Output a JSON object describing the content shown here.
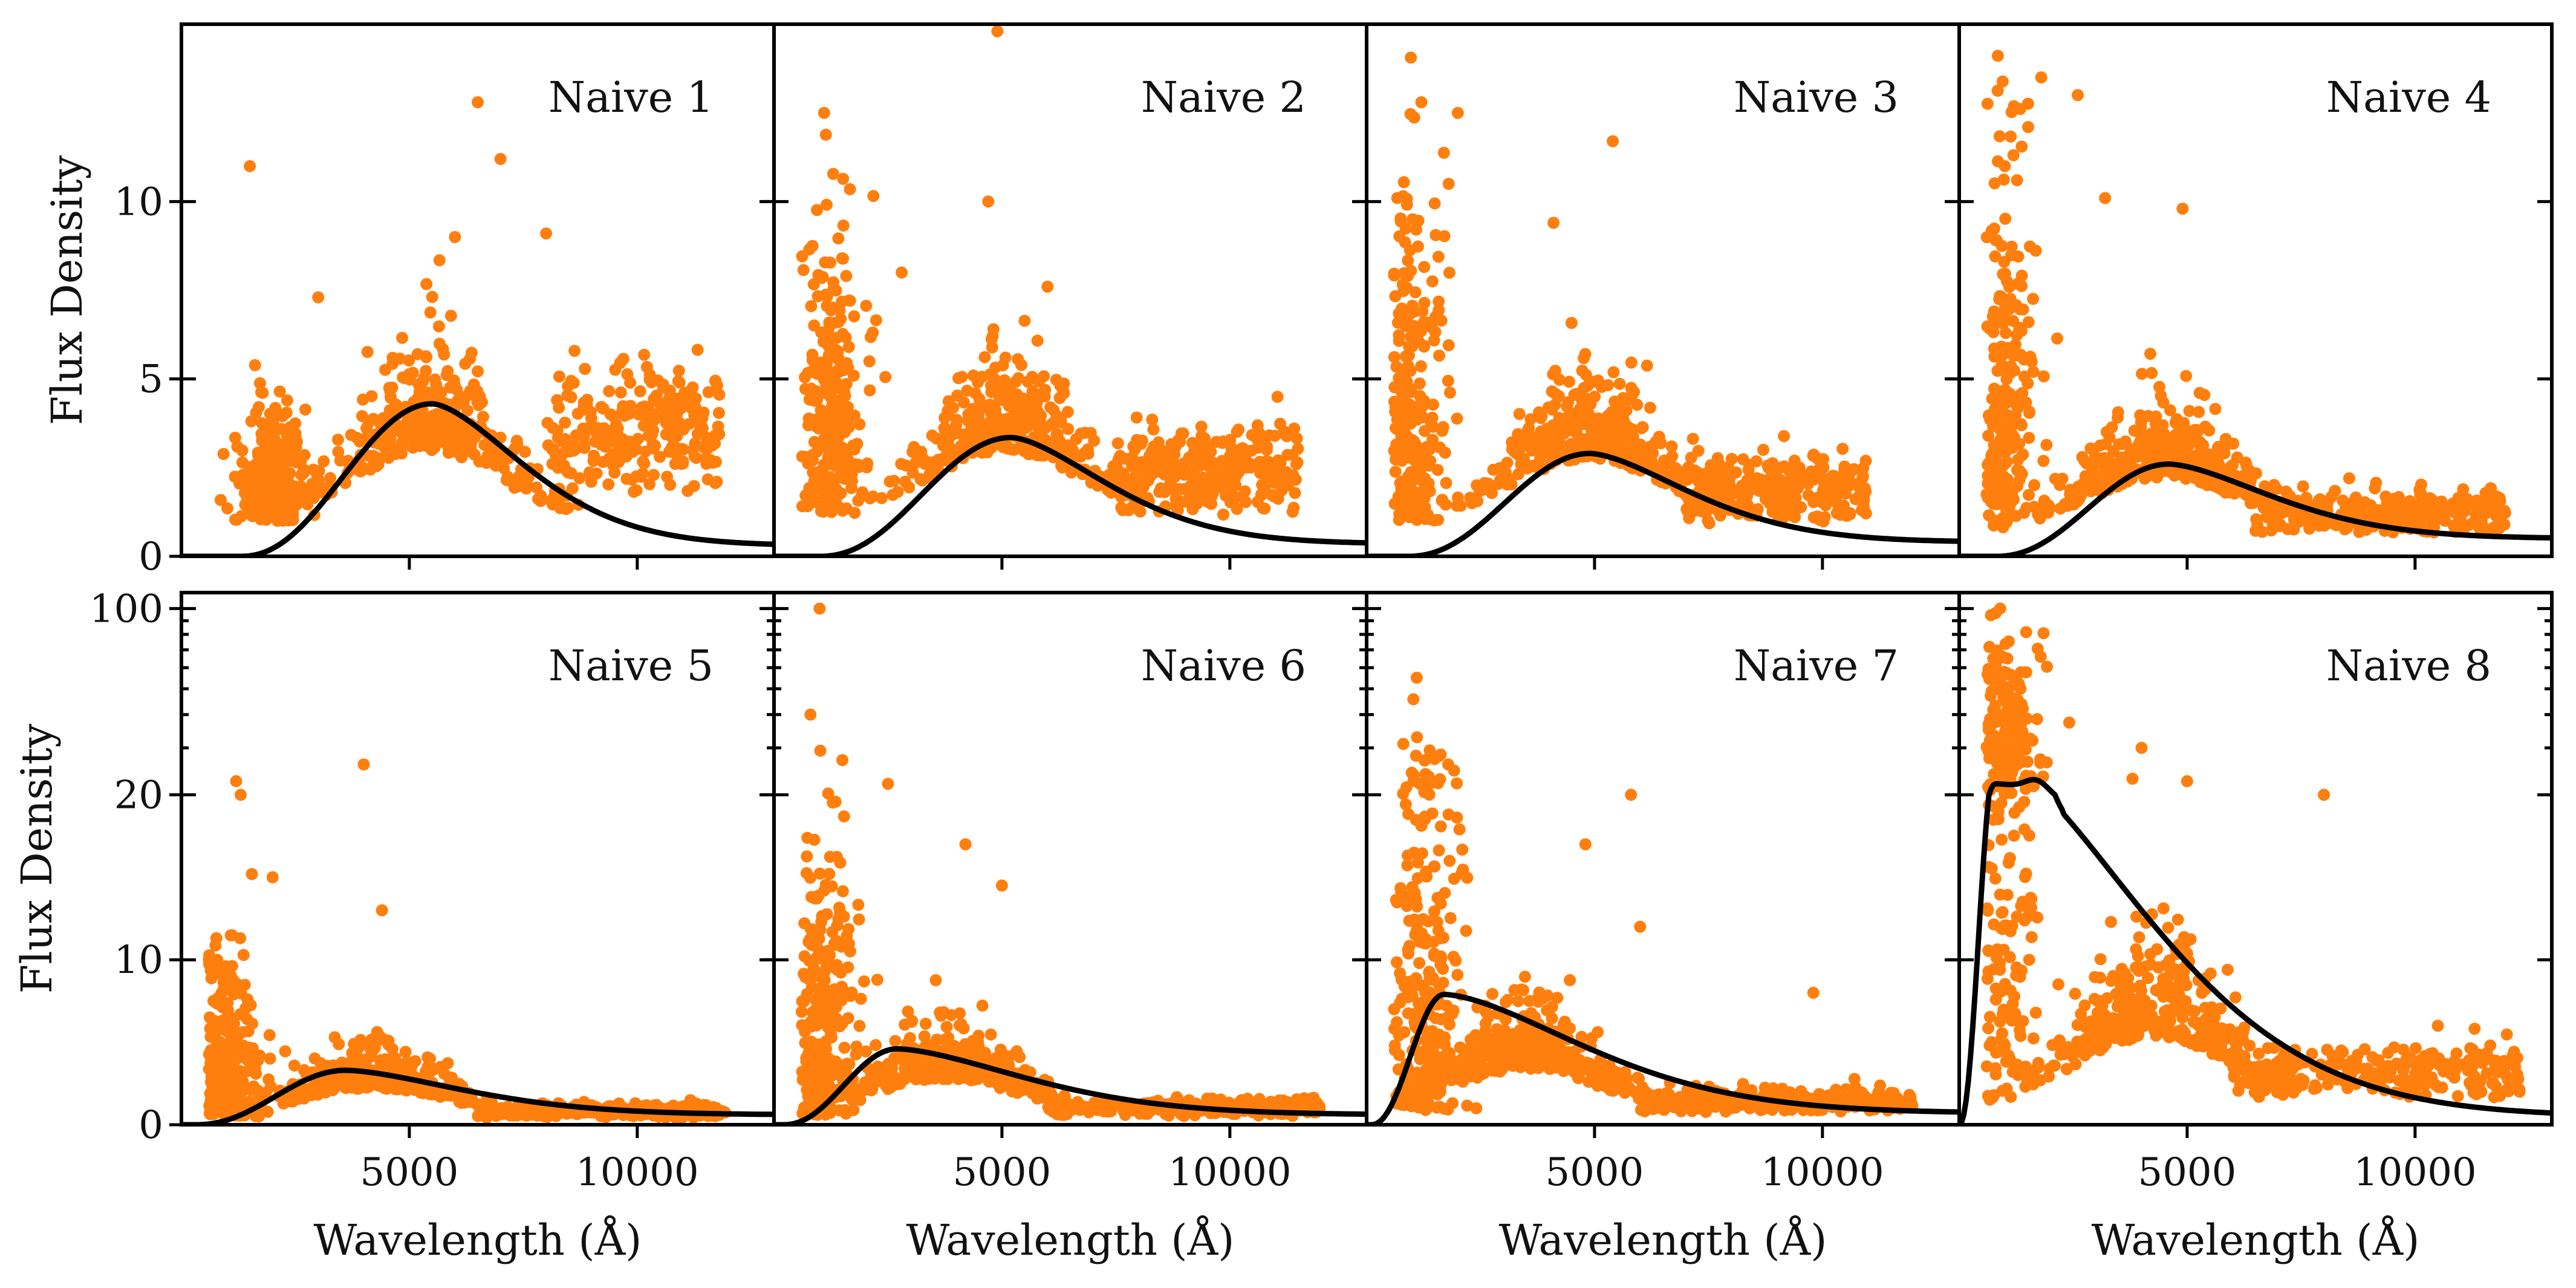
{
  "chart_data": [
    {
      "type": "scatter",
      "title": "Naive 1",
      "ylabel": "Flux Density",
      "xlabel": "",
      "xlim": [
        0,
        13000
      ],
      "ylim": [
        0,
        15
      ],
      "yscale": "linear",
      "yticks": [
        0,
        5,
        10
      ],
      "xticks": [],
      "fit": {
        "peak_x": 5500,
        "peak_y": 4.3,
        "onset_x": 1300,
        "tail_y": 0.3
      },
      "scatter": {
        "blue_x": 2000,
        "blue_y": 2.8,
        "main_x": 5400,
        "main_y": 4.6,
        "red_start": 8000,
        "red_end": 11800,
        "red_y": 3.4,
        "floor_y": 1.0,
        "outliers": [
          [
            6500,
            12.8
          ],
          [
            1500,
            11.0
          ],
          [
            7000,
            11.2
          ],
          [
            6000,
            9.0
          ],
          [
            3000,
            7.3
          ],
          [
            8000,
            9.1
          ]
        ]
      }
    },
    {
      "type": "scatter",
      "title": "Naive 2",
      "ylabel": "",
      "xlabel": "",
      "xlim": [
        0,
        13000
      ],
      "ylim": [
        0,
        15
      ],
      "yscale": "linear",
      "yticks": [
        0,
        5,
        10
      ],
      "xticks": [],
      "fit": {
        "peak_x": 5200,
        "peak_y": 3.35,
        "onset_x": 1000,
        "tail_y": 0.35
      },
      "scatter": {
        "blue_x": 1300,
        "blue_y": 5.5,
        "main_x": 5100,
        "main_y": 4.4,
        "red_start": 7500,
        "red_end": 11500,
        "red_y": 2.3,
        "floor_y": 1.2,
        "outliers": [
          [
            1100,
            12.5
          ],
          [
            4900,
            14.8
          ],
          [
            4700,
            10.0
          ],
          [
            2800,
            8.0
          ],
          [
            6000,
            7.6
          ]
        ]
      }
    },
    {
      "type": "scatter",
      "title": "Naive 3",
      "ylabel": "",
      "xlabel": "",
      "xlim": [
        0,
        13000
      ],
      "ylim": [
        0,
        15
      ],
      "yscale": "linear",
      "yticks": [
        0,
        5,
        10
      ],
      "xticks": [],
      "fit": {
        "peak_x": 4900,
        "peak_y": 2.9,
        "onset_x": 900,
        "tail_y": 0.4
      },
      "scatter": {
        "blue_x": 1000,
        "blue_y": 6.0,
        "main_x": 4900,
        "main_y": 4.2,
        "red_start": 7000,
        "red_end": 11000,
        "red_y": 1.8,
        "floor_y": 1.0,
        "outliers": [
          [
            1200,
            12.8
          ],
          [
            2000,
            12.5
          ],
          [
            5400,
            11.7
          ],
          [
            4100,
            9.4
          ],
          [
            1800,
            10.5
          ]
        ]
      }
    },
    {
      "type": "scatter",
      "title": "Naive 4",
      "ylabel": "",
      "xlabel": "",
      "xlim": [
        0,
        13000
      ],
      "ylim": [
        0,
        15
      ],
      "yscale": "linear",
      "yticks": [
        0,
        5,
        10
      ],
      "xticks": [],
      "fit": {
        "peak_x": 4600,
        "peak_y": 2.6,
        "onset_x": 800,
        "tail_y": 0.5
      },
      "scatter": {
        "blue_x": 1000,
        "blue_y": 7.0,
        "main_x": 4500,
        "main_y": 3.4,
        "red_start": 6500,
        "red_end": 12000,
        "red_y": 1.2,
        "floor_y": 0.8,
        "outliers": [
          [
            1800,
            13.5
          ],
          [
            2600,
            13.0
          ],
          [
            1000,
            11.0
          ],
          [
            3200,
            10.1
          ],
          [
            4900,
            9.8
          ]
        ]
      }
    },
    {
      "type": "scatter",
      "title": "Naive 5",
      "ylabel": "Flux Density",
      "xlabel": "Wavelength (Å)",
      "xlim": [
        0,
        13000
      ],
      "ylim": [
        0,
        100
      ],
      "yscale": "symlog",
      "yticks": [
        0,
        10,
        20,
        100
      ],
      "xticks": [
        5000,
        10000
      ],
      "fit": {
        "peak_x": 3600,
        "peak_y": 3.3,
        "onset_x": 300,
        "tail_y": 0.6
      },
      "scatter": {
        "blue_x": 1000,
        "blue_y": 5.5,
        "main_x": 4200,
        "main_y": 3.6,
        "red_start": 6500,
        "red_end": 12000,
        "red_y": 0.8,
        "floor_y": 0.5,
        "outliers": [
          [
            1200,
            22.5
          ],
          [
            4000,
            26.0
          ],
          [
            1300,
            20.0
          ],
          [
            4400,
            13.0
          ],
          [
            2000,
            15.0
          ]
        ]
      }
    },
    {
      "type": "scatter",
      "title": "Naive 6",
      "ylabel": "",
      "xlabel": "Wavelength (Å)",
      "xlim": [
        0,
        13000
      ],
      "ylim": [
        0,
        100
      ],
      "yscale": "symlog",
      "yticks": [
        0,
        10,
        20,
        100
      ],
      "xticks": [
        5000,
        10000
      ],
      "fit": {
        "peak_x": 2700,
        "peak_y": 4.6,
        "onset_x": 200,
        "tail_y": 0.6
      },
      "scatter": {
        "blue_x": 1100,
        "blue_y": 9.0,
        "main_x": 3800,
        "main_y": 4.5,
        "red_start": 6000,
        "red_end": 12000,
        "red_y": 1.0,
        "floor_y": 0.6,
        "outliers": [
          [
            1000,
            100.0
          ],
          [
            800,
            40.0
          ],
          [
            1500,
            27.0
          ],
          [
            2500,
            22.0
          ],
          [
            4200,
            17.0
          ],
          [
            5000,
            14.5
          ]
        ]
      }
    },
    {
      "type": "scatter",
      "title": "Naive 7",
      "ylabel": "",
      "xlabel": "Wavelength (Å)",
      "xlim": [
        0,
        13000
      ],
      "ylim": [
        0,
        100
      ],
      "yscale": "symlog",
      "yticks": [
        0,
        10,
        20,
        100
      ],
      "xticks": [
        5000,
        10000
      ],
      "fit": {
        "peak_x": 1700,
        "peak_y": 7.9,
        "onset_x": 100,
        "tail_y": 0.7
      },
      "scatter": {
        "blue_x": 1300,
        "blue_y": 14.0,
        "main_x": 3500,
        "main_y": 5.5,
        "red_start": 6000,
        "red_end": 12000,
        "red_y": 1.4,
        "floor_y": 0.8,
        "outliers": [
          [
            1100,
            55.0
          ],
          [
            5800,
            20.0
          ],
          [
            4800,
            17.0
          ],
          [
            9800,
            8.0
          ],
          [
            6000,
            12.0
          ]
        ]
      }
    },
    {
      "type": "scatter",
      "title": "Naive 8",
      "ylabel": "",
      "xlabel": "Wavelength (Å)",
      "xlim": [
        0,
        13000
      ],
      "ylim": [
        0,
        100
      ],
      "yscale": "symlog",
      "yticks": [
        0,
        10,
        20,
        100
      ],
      "xticks": [
        5000,
        10000
      ],
      "fit": {
        "peak_x": 800,
        "peak_y": 22.0,
        "onset_x": 0,
        "tail_y": 0.5,
        "shoulder_x": 1700
      },
      "scatter": {
        "blue_x": 1000,
        "blue_y": 35.0,
        "main_x": 4300,
        "main_y": 8.5,
        "red_start": 6000,
        "red_end": 12500,
        "red_y": 3.0,
        "floor_y": 1.5,
        "outliers": [
          [
            900,
            100.0
          ],
          [
            4000,
            30.0
          ],
          [
            3800,
            23.0
          ],
          [
            5000,
            22.5
          ],
          [
            8000,
            20.0
          ],
          [
            10500,
            6.0
          ]
        ]
      }
    }
  ],
  "colors": {
    "scatter": "#ff7f0e",
    "fit_line": "#000000",
    "frame": "#000000"
  }
}
